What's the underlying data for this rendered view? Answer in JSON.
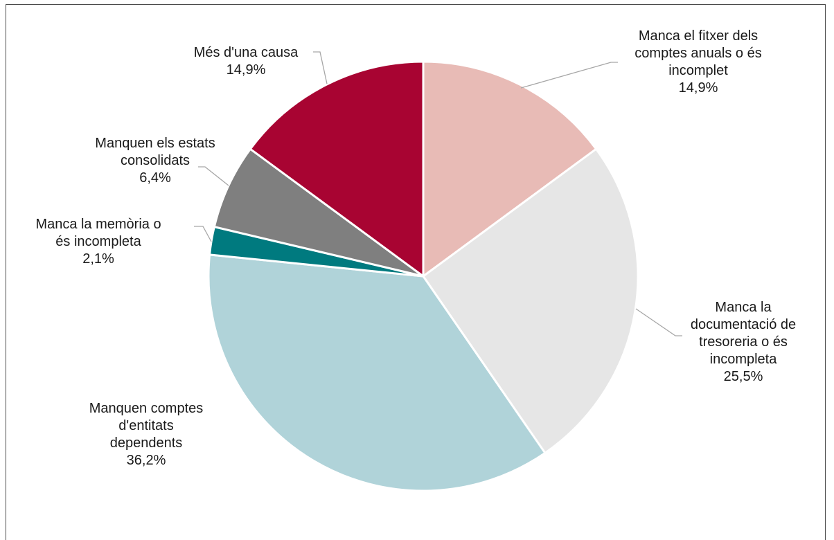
{
  "chart_data": {
    "type": "pie",
    "slices": [
      {
        "label": [
          "Manca el fitxer dels",
          "comptes anuals o és",
          "incomplet"
        ],
        "value": 14.9,
        "display": "14,9%",
        "color": "#e8bbb6"
      },
      {
        "label": [
          "Manca la",
          "documentació de",
          "tresoreria o és",
          "incompleta"
        ],
        "value": 25.5,
        "display": "25,5%",
        "color": "#e6e6e6"
      },
      {
        "label": [
          "Manquen comptes",
          "d'entitats",
          "dependents"
        ],
        "value": 36.2,
        "display": "36,2%",
        "color": "#b0d3d9"
      },
      {
        "label": [
          "Manca la memòria o",
          "és incompleta"
        ],
        "value": 2.1,
        "display": "2,1%",
        "color": "#007a7f"
      },
      {
        "label": [
          "Manquen els estats",
          "consolidats"
        ],
        "value": 6.4,
        "display": "6,4%",
        "color": "#7f7f7f"
      },
      {
        "label": [
          "Més d'una causa"
        ],
        "value": 14.9,
        "display": "14,9%",
        "color": "#a80432"
      }
    ]
  }
}
